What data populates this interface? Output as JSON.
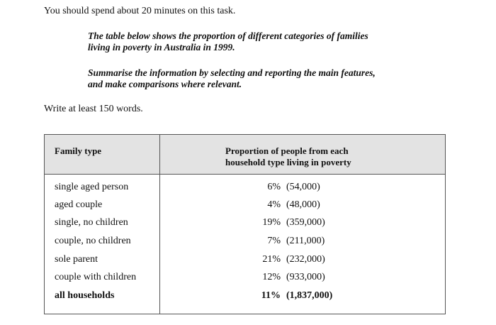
{
  "instructions": {
    "time_note": "You should spend about 20 minutes on this task.",
    "prompt_lines_1": [
      "The table below shows the proportion of different categories of families",
      "living in poverty in Australia in 1999."
    ],
    "prompt_lines_2": [
      "Summarise the information by selecting and reporting the main features,",
      "and make comparisons where relevant."
    ],
    "word_count_note": "Write at least 150 words."
  },
  "table": {
    "header": {
      "family_type": "Family type",
      "proportion_line1": "Proportion of people from each",
      "proportion_line2": "household type living in poverty"
    },
    "rows": [
      {
        "type": "single aged person",
        "percent": "6%",
        "count": "(54,000)"
      },
      {
        "type": "aged couple",
        "percent": "4%",
        "count": "(48,000)"
      },
      {
        "type": "single, no children",
        "percent": "19%",
        "count": "(359,000)"
      },
      {
        "type": "couple, no children",
        "percent": "7%",
        "count": "(211,000)"
      },
      {
        "type": "sole parent",
        "percent": "21%",
        "count": "(232,000)"
      },
      {
        "type": "couple with children",
        "percent": "12%",
        "count": "(933,000)"
      },
      {
        "type": "all households",
        "percent": "11%",
        "count": "(1,837,000)"
      }
    ]
  }
}
